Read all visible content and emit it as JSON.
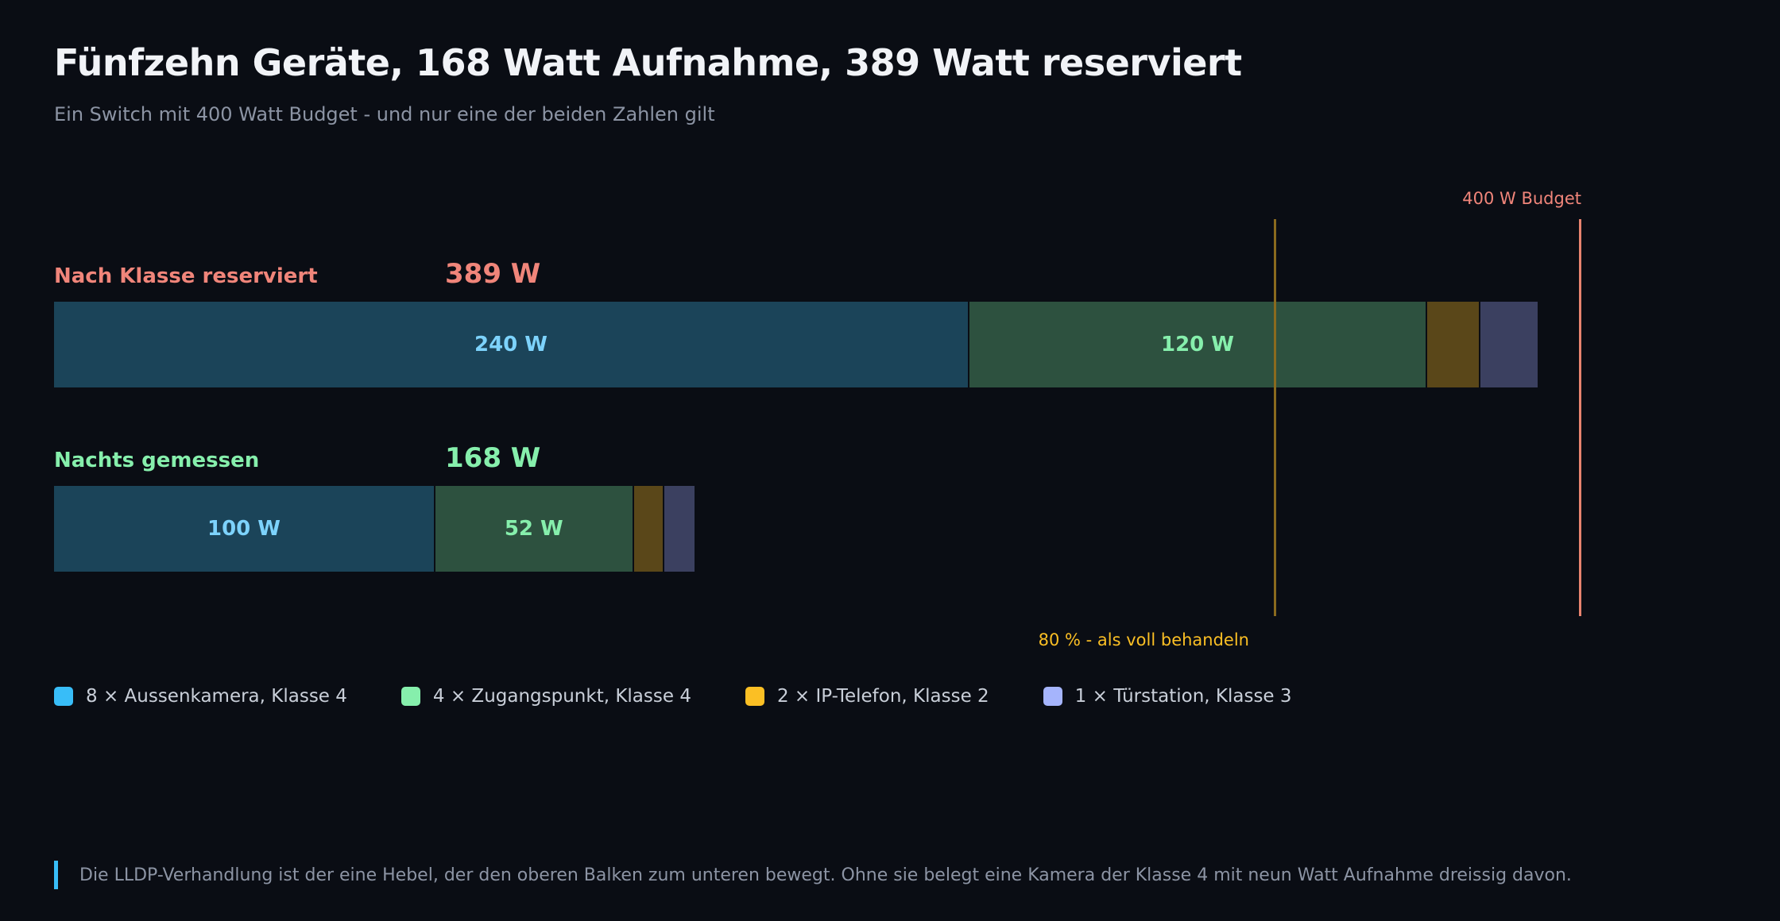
{
  "title": "Fünfzehn Geräte, 168 Watt Aufnahme, 389 Watt reserviert",
  "subtitle": "Ein Switch mit 400 Watt Budget - und nur eine der beiden Zahlen gilt",
  "colors": {
    "background": "#0a0d14",
    "reserved_accent": "#f0857a",
    "measured_accent": "#86efac",
    "threshold_accent": "#fbbf24",
    "budget_accent": "#f0857a"
  },
  "chart_data": {
    "type": "bar",
    "orientation": "horizontal",
    "stacked": true,
    "xlim": [
      0,
      400
    ],
    "unit": "W",
    "bars": [
      {
        "label": "Nach Klasse reserviert",
        "total_label": "389 W",
        "total": 389,
        "color": "#f0857a",
        "segments": [
          {
            "category": "8 × Aussenkamera, Klasse 4",
            "value": 240,
            "label": "240 W"
          },
          {
            "category": "4 × Zugangspunkt, Klasse 4",
            "value": 120,
            "label": "120 W"
          },
          {
            "category": "2 × IP-Telefon, Klasse 2",
            "value": 14,
            "label": ""
          },
          {
            "category": "1 × Türstation, Klasse 3",
            "value": 15,
            "label": ""
          }
        ]
      },
      {
        "label": "Nachts gemessen",
        "total_label": "168 W",
        "total": 168,
        "color": "#86efac",
        "segments": [
          {
            "category": "8 × Aussenkamera, Klasse 4",
            "value": 100,
            "label": "100 W"
          },
          {
            "category": "4 × Zugangspunkt, Klasse 4",
            "value": 52,
            "label": "52 W"
          },
          {
            "category": "2 × IP-Telefon, Klasse 2",
            "value": 8,
            "label": ""
          },
          {
            "category": "1 × Türstation, Klasse 3",
            "value": 8,
            "label": ""
          }
        ]
      }
    ],
    "legend": [
      {
        "label": "8 × Aussenkamera, Klasse 4",
        "color": "#38bdf8",
        "fill": "#1b4459",
        "text": "#7dd3fc"
      },
      {
        "label": "4 × Zugangspunkt, Klasse 4",
        "color": "#86efac",
        "fill": "#2d513f",
        "text": "#86efac"
      },
      {
        "label": "2 × IP-Telefon, Klasse 2",
        "color": "#fbbf24",
        "fill": "#5a4719",
        "text": "#fbbf24"
      },
      {
        "label": "1 × Türstation, Klasse 3",
        "color": "#a5b4fc",
        "fill": "#3b4060",
        "text": "#a5b4fc"
      }
    ],
    "legend_placement": "bottom-left",
    "reference_lines": [
      {
        "value": 320,
        "label": "80 % - als voll behandeln",
        "color": "#fbbf24",
        "line_color": "#8a6a1e"
      },
      {
        "value": 400,
        "label": "400 W Budget",
        "color": "#f0857a",
        "line_color": "#e8836f"
      }
    ]
  },
  "footnote": "Die LLDP-Verhandlung ist der eine Hebel, der den oberen Balken zum unteren bewegt. Ohne sie belegt eine Kamera der Klasse 4 mit neun Watt Aufnahme dreissig davon."
}
